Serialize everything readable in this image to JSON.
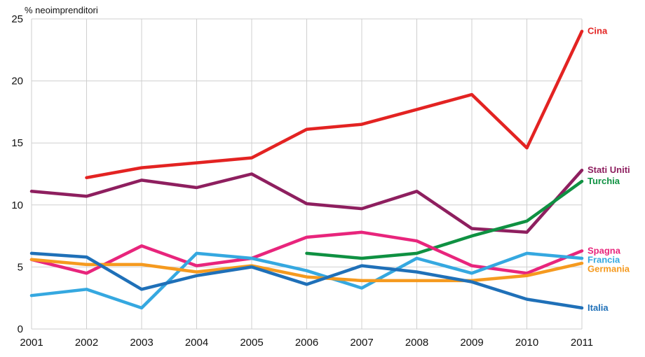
{
  "chart_data": {
    "type": "line",
    "title": "",
    "xlabel": "",
    "ylabel": "% neoimprenditori",
    "x": [
      "2001",
      "2002",
      "2003",
      "2004",
      "2005",
      "2006",
      "2007",
      "2008",
      "2009",
      "2010",
      "2011"
    ],
    "ylim": [
      0,
      25
    ],
    "yticks": [
      "0",
      "5",
      "10",
      "15",
      "20",
      "25"
    ],
    "grid": true,
    "legend": "line-end labels on right",
    "series": [
      {
        "name": "Cina",
        "color": "#e32322",
        "values": [
          null,
          12.2,
          13.0,
          13.4,
          13.8,
          16.1,
          16.5,
          17.7,
          18.9,
          14.6,
          24.0
        ]
      },
      {
        "name": "Stati Uniti",
        "color": "#8e1f5f",
        "values": [
          11.1,
          10.7,
          12.0,
          11.4,
          12.5,
          10.1,
          9.7,
          11.1,
          8.1,
          7.8,
          12.8
        ]
      },
      {
        "name": "Turchia",
        "color": "#0f9142",
        "values": [
          null,
          null,
          null,
          null,
          null,
          6.1,
          5.7,
          6.1,
          7.5,
          8.7,
          11.9
        ]
      },
      {
        "name": "Spagna",
        "color": "#e8257c",
        "values": [
          5.6,
          4.5,
          6.7,
          5.1,
          5.7,
          7.4,
          7.8,
          7.1,
          5.1,
          4.5,
          6.3
        ]
      },
      {
        "name": "Francia",
        "color": "#35a8e0",
        "values": [
          2.7,
          3.2,
          1.7,
          6.1,
          5.7,
          4.7,
          3.3,
          5.7,
          4.5,
          6.1,
          5.7
        ]
      },
      {
        "name": "Germania",
        "color": "#f59a1f",
        "values": [
          5.6,
          5.2,
          5.2,
          4.6,
          5.1,
          4.2,
          3.9,
          3.9,
          3.9,
          4.3,
          5.3
        ]
      },
      {
        "name": "Italia",
        "color": "#1f70b8",
        "values": [
          6.1,
          5.8,
          3.2,
          4.3,
          5.0,
          3.6,
          5.1,
          4.6,
          3.8,
          2.4,
          1.7
        ]
      }
    ]
  }
}
